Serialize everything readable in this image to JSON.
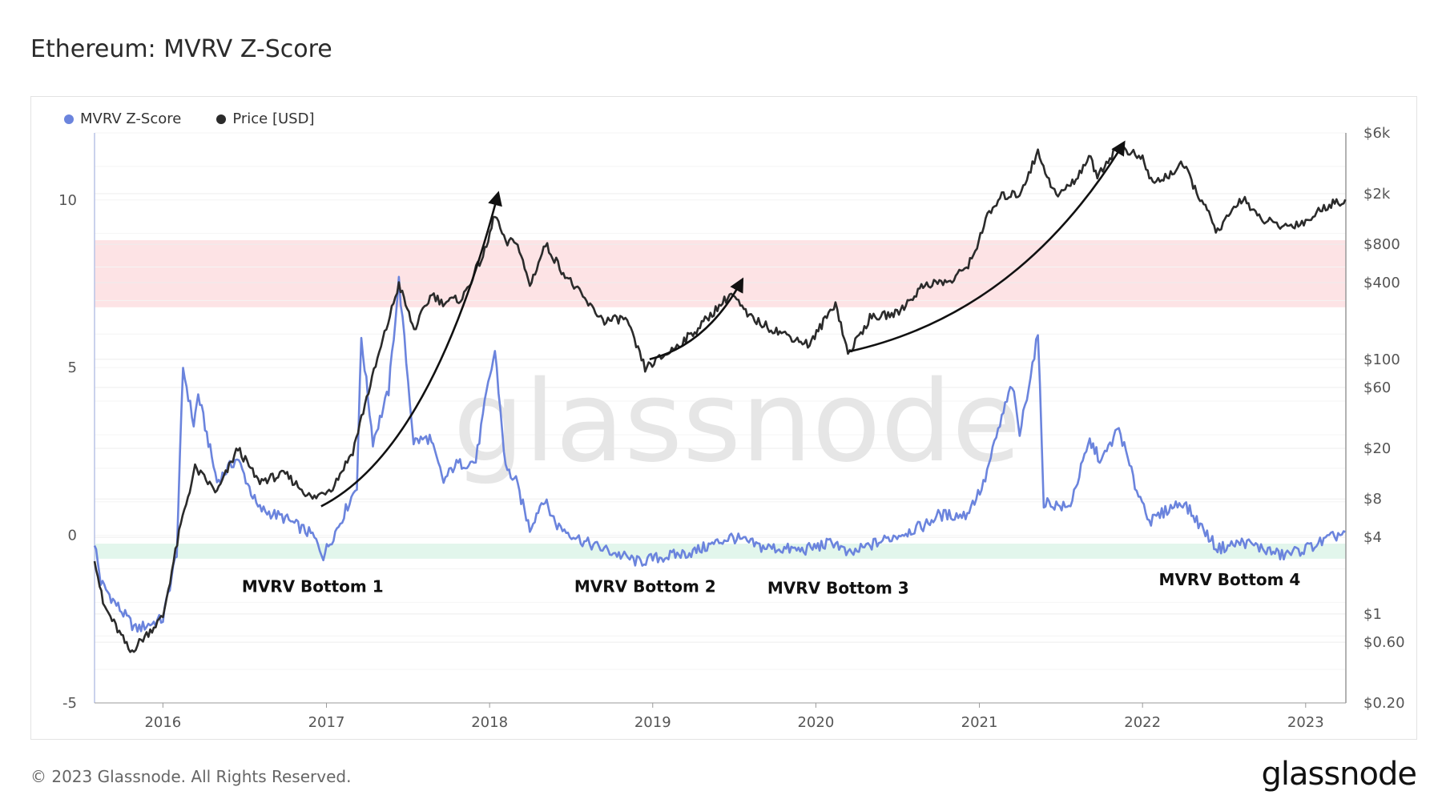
{
  "page": {
    "title": "Ethereum: MVRV Z-Score",
    "copyright": "© 2023 Glassnode. All Rights Reserved.",
    "brand": "glassnode",
    "watermark": "glassnode"
  },
  "colors": {
    "mvrv": "#6b84dd",
    "price": "#2b2b2b",
    "red_band": "#fde3e5",
    "green_band": "#e2f6ec",
    "grid": "#ededed",
    "arrow": "#111111"
  },
  "chart_data": {
    "type": "line",
    "x_range": [
      "2015-08-01",
      "2023-04-01"
    ],
    "x_ticks": [
      "2016",
      "2017",
      "2018",
      "2019",
      "2020",
      "2021",
      "2022",
      "2023"
    ],
    "y_left": {
      "range": [
        -5,
        12
      ],
      "ticks": [
        "10",
        "5",
        "0",
        "-5"
      ]
    },
    "y_right": {
      "scale": "log",
      "range": [
        0.2,
        6000
      ],
      "ticks": [
        {
          "label": "$6k",
          "value": 6000
        },
        {
          "label": "$2k",
          "value": 2000
        },
        {
          "label": "$800",
          "value": 800
        },
        {
          "label": "$400",
          "value": 400
        },
        {
          "label": "$100",
          "value": 100
        },
        {
          "label": "$60",
          "value": 60
        },
        {
          "label": "$20",
          "value": 20
        },
        {
          "label": "$8",
          "value": 8
        },
        {
          "label": "$4",
          "value": 4
        },
        {
          "label": "$1",
          "value": 1
        },
        {
          "label": "$0.60",
          "value": 0.6
        },
        {
          "label": "$0.20",
          "value": 0.2
        }
      ]
    },
    "bands": [
      {
        "name": "red",
        "from": 6.8,
        "to": 8.8
      },
      {
        "name": "green",
        "from": -0.7,
        "to": -0.25
      }
    ],
    "series": [
      {
        "name": "MVRV Z-Score",
        "axis": "left",
        "x": [
          "2015-08-01",
          "2015-08-15",
          "2015-09-15",
          "2015-11-01",
          "2016-01-01",
          "2016-02-01",
          "2016-02-15",
          "2016-03-10",
          "2016-03-20",
          "2016-05-01",
          "2016-06-15",
          "2016-08-01",
          "2016-10-01",
          "2016-12-01",
          "2016-12-25",
          "2017-02-01",
          "2017-03-10",
          "2017-03-20",
          "2017-04-15",
          "2017-05-20",
          "2017-06-12",
          "2017-07-15",
          "2017-08-20",
          "2017-09-20",
          "2017-10-15",
          "2017-12-01",
          "2017-12-25",
          "2018-01-13",
          "2018-02-06",
          "2018-03-01",
          "2018-04-01",
          "2018-05-01",
          "2018-06-01",
          "2018-08-01",
          "2018-10-01",
          "2018-12-01",
          "2019-01-01",
          "2019-04-01",
          "2019-06-26",
          "2019-09-01",
          "2019-12-01",
          "2020-02-14",
          "2020-03-13",
          "2020-05-01",
          "2020-07-01",
          "2020-09-01",
          "2020-10-01",
          "2020-12-01",
          "2021-01-10",
          "2021-02-20",
          "2021-03-15",
          "2021-04-01",
          "2021-05-12",
          "2021-05-25",
          "2021-07-20",
          "2021-09-05",
          "2021-10-01",
          "2021-11-09",
          "2021-12-15",
          "2022-01-20",
          "2022-03-01",
          "2022-04-01",
          "2022-06-18",
          "2022-08-15",
          "2022-11-09",
          "2023-01-01",
          "2023-03-31"
        ],
        "values": [
          -0.2,
          -1.4,
          -2.0,
          -2.8,
          -2.5,
          -0.5,
          5.0,
          3.3,
          4.2,
          1.6,
          2.3,
          0.8,
          0.5,
          0.0,
          -0.6,
          0.4,
          1.5,
          5.9,
          2.8,
          4.3,
          7.6,
          2.8,
          2.9,
          1.6,
          2.1,
          2.2,
          4.2,
          5.5,
          2.0,
          1.6,
          0.2,
          1.1,
          0.3,
          -0.2,
          -0.5,
          -0.8,
          -0.7,
          -0.5,
          -0.05,
          -0.35,
          -0.45,
          -0.2,
          -0.6,
          -0.3,
          0.0,
          0.3,
          0.6,
          0.6,
          1.5,
          3.5,
          4.5,
          3.0,
          6.0,
          1.0,
          0.8,
          2.8,
          2.2,
          3.2,
          1.5,
          0.4,
          0.8,
          1.0,
          -0.4,
          -0.2,
          -0.6,
          -0.4,
          0.1
        ]
      },
      {
        "name": "Price [USD]",
        "axis": "right",
        "x": [
          "2015-08-01",
          "2015-08-20",
          "2015-10-20",
          "2016-01-01",
          "2016-02-10",
          "2016-03-13",
          "2016-05-01",
          "2016-06-17",
          "2016-08-01",
          "2016-10-01",
          "2016-12-01",
          "2017-01-15",
          "2017-03-01",
          "2017-04-01",
          "2017-06-12",
          "2017-07-16",
          "2017-08-25",
          "2017-09-15",
          "2017-11-01",
          "2017-12-25",
          "2018-01-13",
          "2018-02-06",
          "2018-03-01",
          "2018-04-01",
          "2018-05-06",
          "2018-06-15",
          "2018-08-14",
          "2018-09-15",
          "2018-11-01",
          "2018-12-15",
          "2019-02-01",
          "2019-04-01",
          "2019-06-26",
          "2019-08-01",
          "2019-09-15",
          "2019-12-18",
          "2020-02-14",
          "2020-03-13",
          "2020-05-01",
          "2020-07-01",
          "2020-09-01",
          "2020-11-01",
          "2020-12-15",
          "2021-01-15",
          "2021-02-20",
          "2021-04-01",
          "2021-05-12",
          "2021-06-22",
          "2021-08-01",
          "2021-09-03",
          "2021-09-22",
          "2021-11-09",
          "2022-01-01",
          "2022-01-24",
          "2022-03-01",
          "2022-04-01",
          "2022-06-18",
          "2022-08-14",
          "2022-09-15",
          "2022-11-09",
          "2023-01-01",
          "2023-02-15",
          "2023-03-31"
        ],
        "values": [
          2.8,
          1.2,
          0.5,
          0.95,
          5.0,
          14.0,
          9.0,
          20.0,
          11.0,
          12.5,
          8.0,
          10.0,
          19.0,
          50.0,
          390.0,
          170.0,
          330.0,
          280.0,
          300.0,
          750.0,
          1400.0,
          800.0,
          870.0,
          380.0,
          800.0,
          480.0,
          260.0,
          200.0,
          210.0,
          85.0,
          110.0,
          160.0,
          330.0,
          220.0,
          180.0,
          130.0,
          280.0,
          110.0,
          210.0,
          230.0,
          390.0,
          410.0,
          600.0,
          1250.0,
          1900.0,
          2000.0,
          4200.0,
          1900.0,
          2500.0,
          3900.0,
          2800.0,
          4800.0,
          3700.0,
          2400.0,
          2800.0,
          3400.0,
          1000.0,
          1900.0,
          1300.0,
          1100.0,
          1200.0,
          1600.0,
          1800.0
        ]
      }
    ],
    "annotations": [
      {
        "text": "MVRV Bottom 1",
        "x": "2016-12-01",
        "y": -1.5
      },
      {
        "text": "MVRV Bottom 2",
        "x": "2018-12-15",
        "y": -1.5
      },
      {
        "text": "MVRV Bottom 3",
        "x": "2020-02-20",
        "y": -1.55
      },
      {
        "text": "MVRV Bottom 4",
        "x": "2022-07-15",
        "y": -1.3
      }
    ],
    "arrows": [
      {
        "from": {
          "x": "2016-12-20",
          "price": 7.0
        },
        "to": {
          "x": "2018-01-20",
          "price": 2000
        }
      },
      {
        "from": {
          "x": "2018-12-25",
          "price": 100
        },
        "to": {
          "x": "2019-07-20",
          "price": 420
        }
      },
      {
        "from": {
          "x": "2020-03-15",
          "price": 115
        },
        "to": {
          "x": "2021-11-20",
          "price": 5000
        }
      }
    ]
  }
}
